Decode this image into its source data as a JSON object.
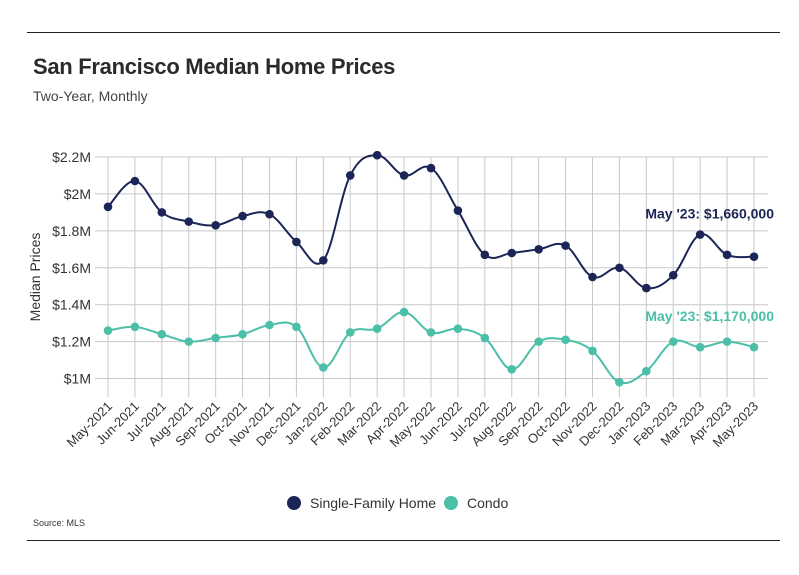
{
  "title": "San Francisco Median Home Prices",
  "subtitle": "Two-Year, Monthly",
  "source": "Source:  MLS",
  "colors": {
    "single_family": "#1c2556",
    "condo": "#4bbfa8",
    "grid": "#c8c8c8",
    "text": "#333333"
  },
  "chart_data": {
    "type": "line",
    "ylabel": "Median Prices",
    "ylim": [
      900000,
      2200000
    ],
    "ytick_values": [
      1000000,
      1200000,
      1400000,
      1600000,
      1800000,
      2000000,
      2200000
    ],
    "ytick_labels": [
      "$1M",
      "$1.2M",
      "$1.4M",
      "$1.6M",
      "$1.8M",
      "$2M",
      "$2.2M"
    ],
    "grid": true,
    "legend_position": "bottom-center",
    "categories": [
      "May-2021",
      "Jun-2021",
      "Jul-2021",
      "Aug-2021",
      "Sep-2021",
      "Oct-2021",
      "Nov-2021",
      "Dec-2021",
      "Jan-2022",
      "Feb-2022",
      "Mar-2022",
      "Apr-2022",
      "May-2022",
      "Jun-2022",
      "Jul-2022",
      "Aug-2022",
      "Sep-2022",
      "Oct-2022",
      "Nov-2022",
      "Dec-2022",
      "Jan-2023",
      "Feb-2023",
      "Mar-2023",
      "Apr-2023",
      "May-2023"
    ],
    "series": [
      {
        "name": "Single-Family Home",
        "color": "#1c2556",
        "values": [
          1930000,
          2070000,
          1900000,
          1850000,
          1830000,
          1880000,
          1890000,
          1740000,
          1640000,
          2100000,
          2210000,
          2100000,
          2140000,
          1910000,
          1670000,
          1680000,
          1700000,
          1720000,
          1550000,
          1600000,
          1490000,
          1560000,
          1780000,
          1670000,
          1660000
        ]
      },
      {
        "name": "Condo",
        "color": "#4bbfa8",
        "values": [
          1260000,
          1280000,
          1240000,
          1200000,
          1220000,
          1240000,
          1290000,
          1280000,
          1060000,
          1250000,
          1270000,
          1360000,
          1250000,
          1270000,
          1220000,
          1050000,
          1200000,
          1210000,
          1150000,
          980000,
          1040000,
          1200000,
          1170000,
          1200000,
          1170000
        ]
      }
    ],
    "annotations": [
      {
        "text": "May '23: $1,660,000",
        "series": "Single-Family Home",
        "color": "#1c2556"
      },
      {
        "text": "May '23: $1,170,000",
        "series": "Condo",
        "color": "#4bbfa8"
      }
    ]
  }
}
